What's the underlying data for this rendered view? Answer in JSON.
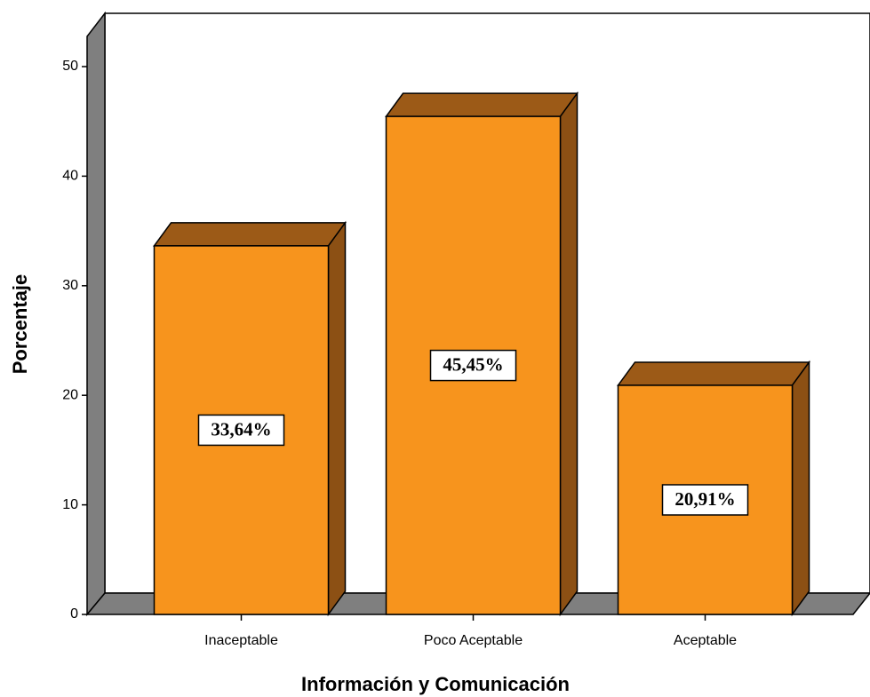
{
  "chart_data": {
    "type": "bar",
    "x_label": "Información y Comunicación",
    "y_label": "Porcentaje",
    "categories": [
      "Inaceptable",
      "Poco Aceptable",
      "Aceptable"
    ],
    "values": [
      33.64,
      45.45,
      20.91
    ],
    "value_labels": [
      "33,64%",
      "45,45%",
      "20,91%"
    ],
    "color": "#f7941d",
    "ylim": [
      0,
      53
    ],
    "yticks": [
      0,
      10,
      20,
      30,
      40,
      50
    ],
    "grid": false
  }
}
